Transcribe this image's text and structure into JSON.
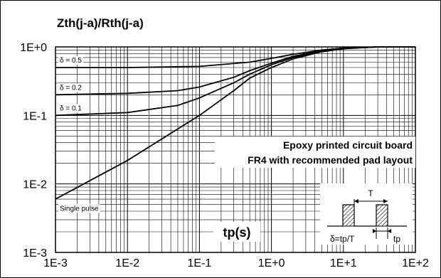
{
  "chart_data": {
    "type": "line",
    "title": "Zth(j-a)/Rth(j-a)",
    "xlabel": "tp(s)",
    "ylabel": "",
    "x_scale": "log",
    "y_scale": "log",
    "xlim": [
      0.001,
      100
    ],
    "ylim": [
      0.001,
      1
    ],
    "grid": true,
    "x_tick_labels": [
      "1E-3",
      "1E-2",
      "1E-1",
      "1E+0",
      "1E+1",
      "1E+2"
    ],
    "y_tick_labels": [
      "1E-3",
      "1E-2",
      "1E-1",
      "1E+0"
    ],
    "annotation": [
      "Epoxy printed circuit board",
      "FR4 with recommended pad layout"
    ],
    "series": [
      {
        "name": "δ = 0.5",
        "x": [
          0.001,
          0.01,
          0.1,
          0.5,
          1,
          2,
          5,
          10,
          20,
          30,
          100
        ],
        "y": [
          0.5,
          0.5,
          0.52,
          0.6,
          0.68,
          0.78,
          0.9,
          0.96,
          0.98,
          1.0,
          1.0
        ]
      },
      {
        "name": "δ = 0.2",
        "x": [
          0.001,
          0.01,
          0.05,
          0.1,
          0.3,
          0.5,
          1,
          2,
          5,
          10,
          20,
          30,
          100
        ],
        "y": [
          0.2,
          0.21,
          0.23,
          0.26,
          0.36,
          0.45,
          0.58,
          0.73,
          0.88,
          0.96,
          0.98,
          1.0,
          1.0
        ]
      },
      {
        "name": "δ = 0.1",
        "x": [
          0.001,
          0.01,
          0.05,
          0.1,
          0.3,
          0.5,
          1,
          2,
          5,
          10,
          20,
          30,
          100
        ],
        "y": [
          0.1,
          0.11,
          0.14,
          0.18,
          0.3,
          0.4,
          0.55,
          0.7,
          0.87,
          0.95,
          0.98,
          1.0,
          1.0
        ]
      },
      {
        "name": "Single pulse",
        "x": [
          0.001,
          0.01,
          0.1,
          0.3,
          0.5,
          1,
          2,
          5,
          10,
          20,
          30,
          100
        ],
        "y": [
          0.006,
          0.022,
          0.1,
          0.23,
          0.35,
          0.5,
          0.67,
          0.85,
          0.94,
          0.98,
          1.0,
          1.0
        ]
      }
    ]
  },
  "inset": {
    "period_label": "T",
    "duty_formula": "δ=tp/T",
    "pulse_label": "tp"
  }
}
